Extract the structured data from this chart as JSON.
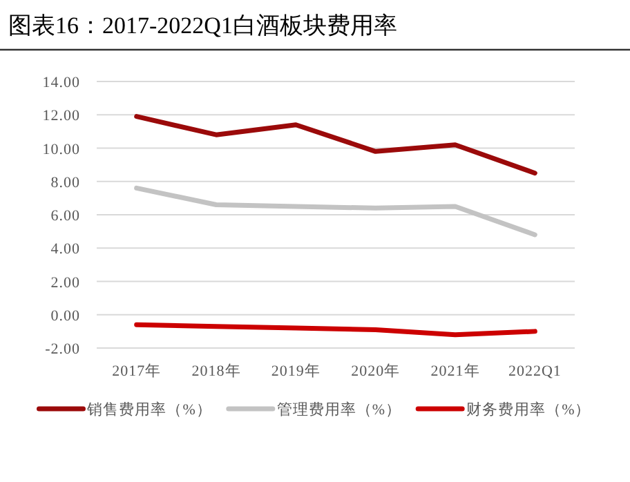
{
  "chart_data": {
    "type": "line",
    "title": "图表16：2017-2022Q1白酒板块费用率",
    "categories": [
      "2017年",
      "2018年",
      "2019年",
      "2020年",
      "2021年",
      "2022Q1"
    ],
    "series": [
      {
        "name": "销售费用率（%）",
        "color": "#9b0a0a",
        "values": [
          11.9,
          10.8,
          11.4,
          9.8,
          10.2,
          8.5
        ]
      },
      {
        "name": "管理费用率（%）",
        "color": "#c3c3c3",
        "values": [
          7.6,
          6.6,
          6.5,
          6.4,
          6.5,
          4.8
        ]
      },
      {
        "name": "财务费用率（%）",
        "color": "#cc0000",
        "values": [
          -0.6,
          -0.7,
          -0.8,
          -0.9,
          -1.2,
          -1.0
        ]
      }
    ],
    "ylim": [
      -2,
      14
    ],
    "yticks": [
      {
        "value": -2,
        "label": "-2.00"
      },
      {
        "value": 0,
        "label": "0.00"
      },
      {
        "value": 2,
        "label": "2.00"
      },
      {
        "value": 4,
        "label": "4.00"
      },
      {
        "value": 6,
        "label": "6.00"
      },
      {
        "value": 8,
        "label": "8.00"
      },
      {
        "value": 10,
        "label": "10.00"
      },
      {
        "value": 12,
        "label": "12.00"
      },
      {
        "value": 14,
        "label": "14.00"
      }
    ],
    "grid": "y",
    "legend": "bottom",
    "marker": "none",
    "line_style": "solid"
  }
}
